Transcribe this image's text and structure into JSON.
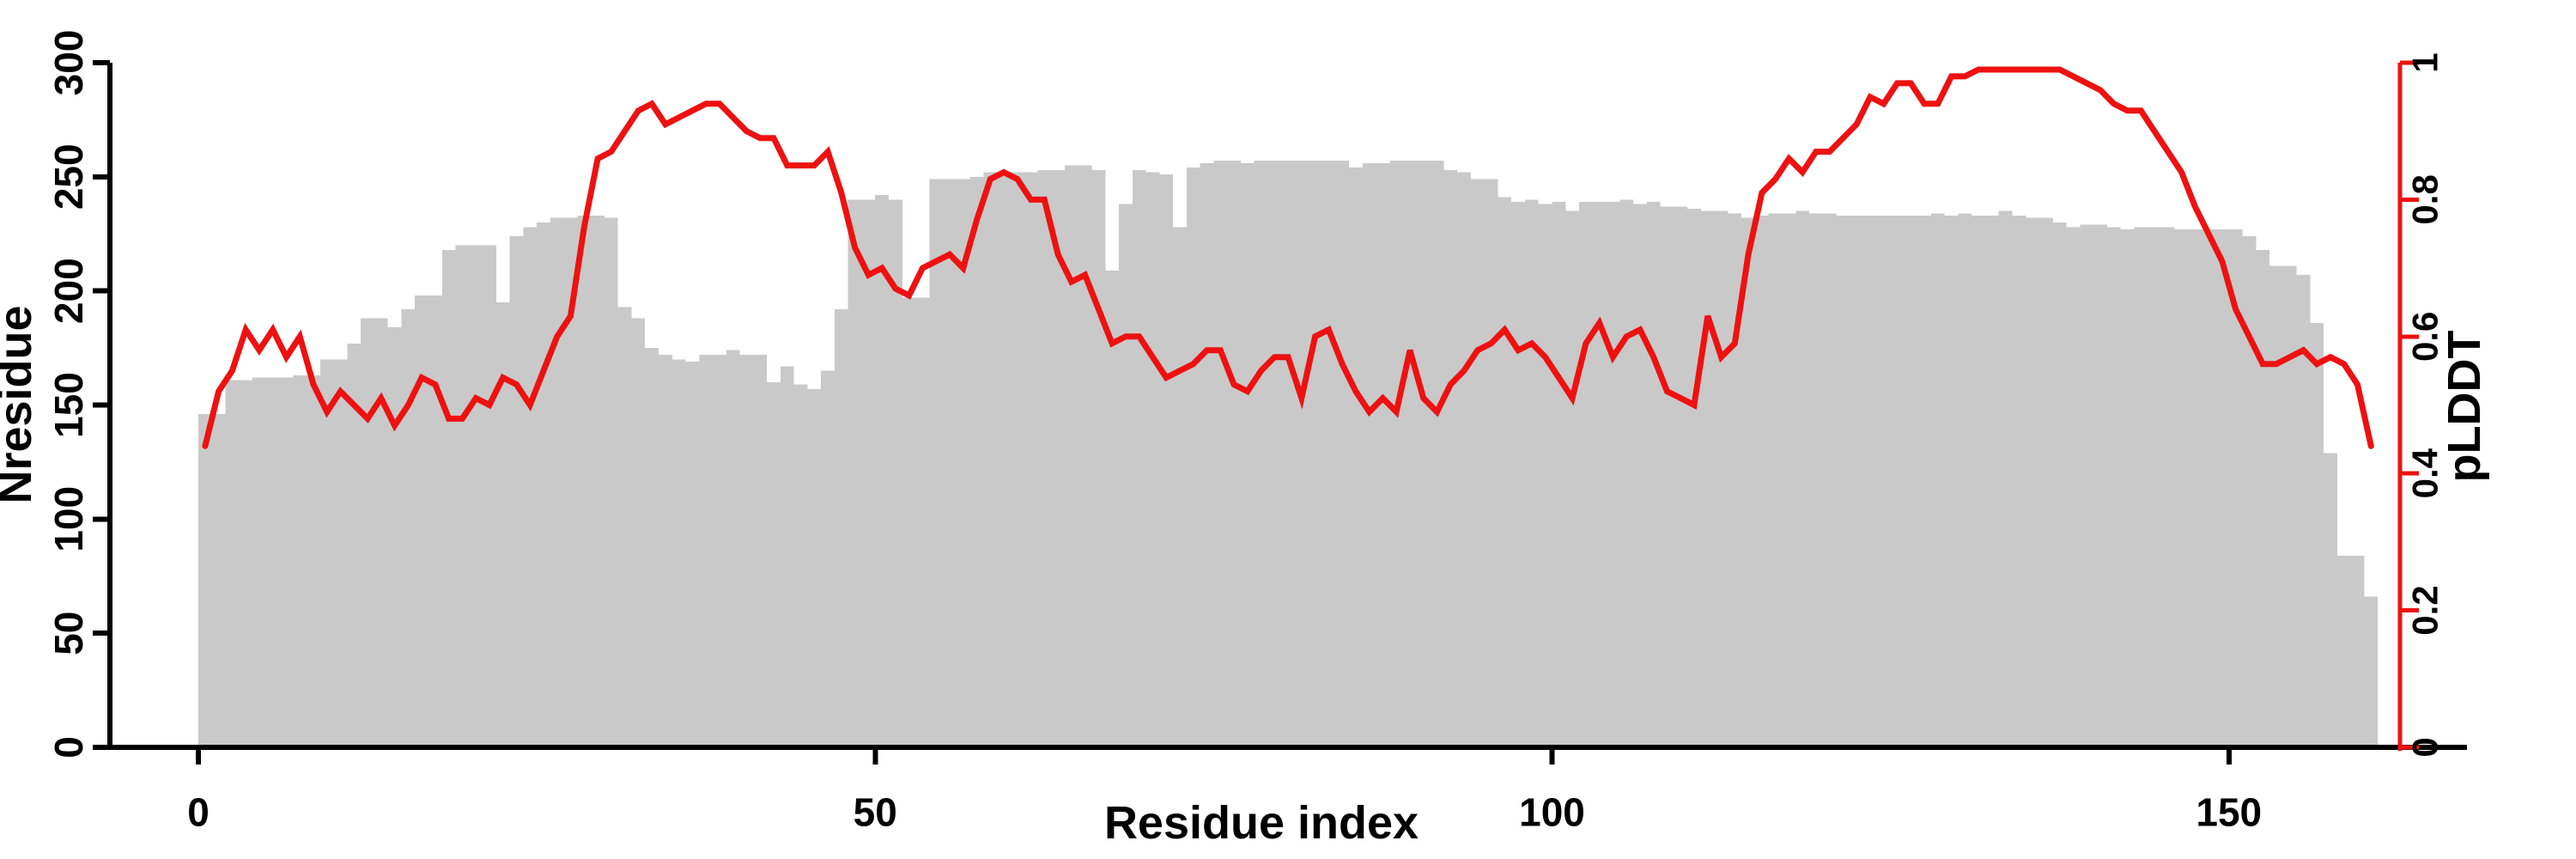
{
  "page": {
    "background": "#ffffff",
    "description_note": "Dual-axis profile plot: gray per-residue bar silhouette (Nresidue, left axis) with red per-residue pLDDT line (right axis)"
  },
  "chart_data": {
    "type": "bar",
    "subtype": "bar-silhouette with overlaid line, dual y-axes",
    "title": "",
    "xlabel": "Residue index",
    "x_start": 0,
    "x_step": 1,
    "x_end": 160,
    "grid": false,
    "legend_position": "none",
    "x_axis": {
      "ticks": [
        "0",
        "50",
        "100",
        "150"
      ],
      "tick_values": [
        0,
        50,
        100,
        150
      ],
      "color": "#000000"
    },
    "left_axis": {
      "label": "Nresidue",
      "min": 0,
      "max": 300,
      "ticks": [
        "0",
        "50",
        "100",
        "150",
        "200",
        "250",
        "300"
      ],
      "tick_values": [
        0,
        50,
        100,
        150,
        200,
        250,
        300
      ],
      "color": "#000000"
    },
    "right_axis": {
      "label": "pLDDT",
      "min": 0,
      "max": 1,
      "ticks": [
        "0",
        "0.2",
        "0.4",
        "0.6",
        "0.8",
        "1"
      ],
      "tick_values": [
        0,
        0.2,
        0.4,
        0.6,
        0.8,
        1
      ],
      "color": "#ee1111"
    },
    "series": [
      {
        "name": "Nresidue",
        "type": "bar",
        "axis": "left",
        "color": "#c9c9c9",
        "values": [
          146,
          146,
          161,
          161,
          162,
          162,
          162,
          163,
          163,
          170,
          170,
          177,
          188,
          188,
          184,
          192,
          198,
          198,
          218,
          220,
          220,
          220,
          195,
          224,
          228,
          230,
          232,
          232,
          233,
          233,
          232,
          193,
          188,
          175,
          172,
          170,
          169,
          172,
          172,
          174,
          172,
          172,
          160,
          167,
          159,
          157,
          165,
          192,
          240,
          240,
          242,
          240,
          197,
          197,
          249,
          249,
          249,
          250,
          252,
          252,
          252,
          252,
          253,
          253,
          255,
          255,
          253,
          209,
          238,
          253,
          252,
          251,
          228,
          254,
          256,
          257,
          257,
          256,
          257,
          257,
          257,
          257,
          257,
          257,
          257,
          254,
          256,
          256,
          257,
          257,
          257,
          257,
          253,
          252,
          249,
          249,
          241,
          239,
          240,
          238,
          239,
          235,
          239,
          239,
          239,
          240,
          238,
          239,
          237,
          237,
          236,
          235,
          235,
          234,
          232,
          233,
          234,
          234,
          235,
          234,
          234,
          233,
          233,
          233,
          233,
          233,
          233,
          233,
          234,
          233,
          234,
          233,
          233,
          235,
          233,
          232,
          232,
          230,
          228,
          229,
          229,
          228,
          227,
          228,
          228,
          228,
          227,
          227,
          227,
          227,
          227,
          224,
          218,
          211,
          211,
          207,
          186,
          129,
          84,
          84,
          66
        ]
      },
      {
        "name": "pLDDT",
        "type": "line",
        "axis": "right",
        "color": "#ee1111",
        "values": [
          0.44,
          0.52,
          0.55,
          0.61,
          0.58,
          0.61,
          0.57,
          0.6,
          0.53,
          0.49,
          0.52,
          0.5,
          0.48,
          0.51,
          0.47,
          0.5,
          0.54,
          0.53,
          0.48,
          0.48,
          0.51,
          0.5,
          0.54,
          0.53,
          0.5,
          0.55,
          0.6,
          0.63,
          0.76,
          0.86,
          0.87,
          0.9,
          0.93,
          0.94,
          0.91,
          0.92,
          0.93,
          0.94,
          0.94,
          0.92,
          0.9,
          0.89,
          0.89,
          0.85,
          0.85,
          0.85,
          0.87,
          0.81,
          0.73,
          0.69,
          0.7,
          0.67,
          0.66,
          0.7,
          0.71,
          0.72,
          0.7,
          0.77,
          0.83,
          0.84,
          0.83,
          0.8,
          0.8,
          0.72,
          0.68,
          0.69,
          0.64,
          0.59,
          0.6,
          0.6,
          0.57,
          0.54,
          0.55,
          0.56,
          0.58,
          0.58,
          0.53,
          0.52,
          0.55,
          0.57,
          0.57,
          0.51,
          0.6,
          0.61,
          0.56,
          0.52,
          0.49,
          0.51,
          0.49,
          0.58,
          0.51,
          0.49,
          0.53,
          0.55,
          0.58,
          0.59,
          0.61,
          0.58,
          0.59,
          0.57,
          0.54,
          0.51,
          0.59,
          0.62,
          0.57,
          0.6,
          0.61,
          0.57,
          0.52,
          0.51,
          0.5,
          0.63,
          0.57,
          0.59,
          0.72,
          0.81,
          0.83,
          0.86,
          0.84,
          0.87,
          0.87,
          0.89,
          0.91,
          0.95,
          0.94,
          0.97,
          0.97,
          0.94,
          0.94,
          0.98,
          0.98,
          0.99,
          0.99,
          0.99,
          0.99,
          0.99,
          0.99,
          0.99,
          0.98,
          0.97,
          0.96,
          0.94,
          0.93,
          0.93,
          0.9,
          0.87,
          0.84,
          0.79,
          0.75,
          0.71,
          0.64,
          0.6,
          0.56,
          0.56,
          0.57,
          0.58,
          0.56,
          0.57,
          0.56,
          0.53,
          0.44
        ]
      }
    ]
  }
}
